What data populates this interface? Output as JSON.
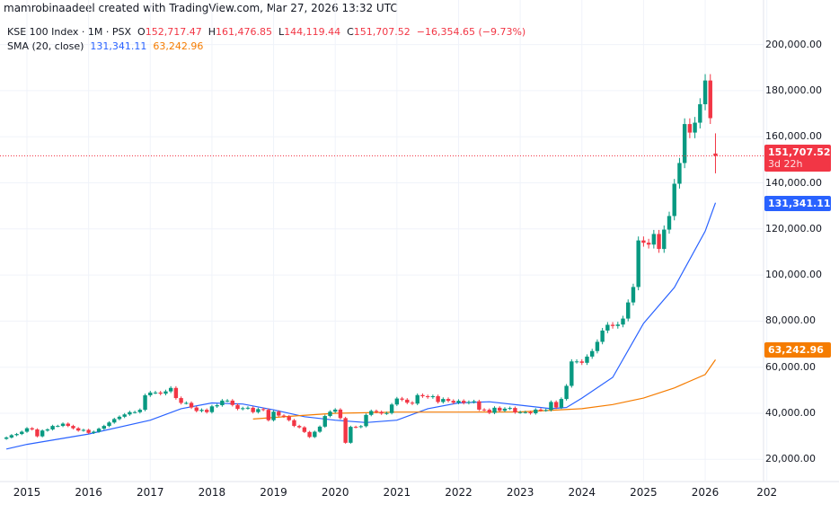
{
  "credit": "mamrobinaadeel created with TradingView.com, Mar 27, 2026 13:32 UTC",
  "legend": {
    "symbol": "KSE 100 Index · 1M · PSX",
    "o_label": "O",
    "o": "152,717.47",
    "h_label": "H",
    "h": "161,476.85",
    "l_label": "L",
    "l": "144,119.44",
    "c_label": "C",
    "c": "151,707.52",
    "change": "−16,354.65 (−9.73%)",
    "sma_label": "SMA (20, close)",
    "sma1": "131,341.11",
    "sma2": "63,242.96"
  },
  "tags": {
    "price": "151,707.52",
    "countdown": "3d 22h",
    "sma1": "131,341.11",
    "sma2": "63,242.96"
  },
  "colors": {
    "up": "#089981",
    "down": "#f23645",
    "sma1": "#2962ff",
    "sma2": "#f57c00",
    "grid": "#f0f3fa",
    "last_price_line": "#f23645"
  },
  "chart_data": {
    "type": "candlestick",
    "interval": "1M",
    "start": "2014-09",
    "closes": [
      29500,
      30500,
      31000,
      32000,
      33500,
      33000,
      30000,
      32500,
      33000,
      34500,
      34500,
      35500,
      34500,
      33500,
      32500,
      32800,
      31500,
      32000,
      33300,
      34500,
      36000,
      37500,
      38500,
      39500,
      40500,
      40500,
      41500,
      47800,
      49000,
      49000,
      48500,
      49500,
      51000,
      46600,
      44500,
      44500,
      42500,
      41000,
      41500,
      40500,
      43000,
      43500,
      45500,
      45500,
      43600,
      41900,
      42200,
      42400,
      40500,
      41800,
      41500,
      37000,
      40700,
      39000,
      38600,
      37000,
      34500,
      33900,
      31900,
      29700,
      32000,
      34200,
      38800,
      40700,
      41600,
      37900,
      27200,
      34100,
      34000,
      34400,
      39300,
      41000,
      40600,
      39900,
      40100,
      43800,
      46400,
      45900,
      44600,
      44200,
      47900,
      47400,
      47000,
      47400,
      44900,
      46200,
      45400,
      44600,
      45400,
      44500,
      44900,
      45200,
      41600,
      41500,
      40200,
      42400,
      41100,
      42000,
      42300,
      40400,
      40500,
      40500,
      40000,
      41600,
      41300,
      41400,
      44900,
      42500,
      46200,
      51900,
      62500,
      62500,
      61900,
      64600,
      67000,
      71000,
      75900,
      78400,
      77900,
      78500,
      81100,
      88100,
      94800,
      115000,
      114000,
      113200,
      117800,
      111300,
      119700,
      125600,
      139600,
      148600,
      165500,
      161800,
      166100,
      174100,
      184400,
      168062.17,
      151707.52
    ],
    "last_candle": {
      "open": 152717.47,
      "high": 161476.85,
      "low": 144119.44,
      "close": 151707.52
    },
    "series": [
      {
        "name": "SMA (20, close)",
        "points": [
          [
            "2014-09",
            24500
          ],
          [
            "2015-01",
            26500
          ],
          [
            "2016-01",
            31000
          ],
          [
            "2017-01",
            37000
          ],
          [
            "2017-07",
            42000
          ],
          [
            "2018-01",
            44500
          ],
          [
            "2018-07",
            44000
          ],
          [
            "2019-01",
            41500
          ],
          [
            "2019-07",
            38500
          ],
          [
            "2020-01",
            37000
          ],
          [
            "2020-07",
            36000
          ],
          [
            "2021-01",
            37000
          ],
          [
            "2021-07",
            42000
          ],
          [
            "2022-01",
            44500
          ],
          [
            "2022-07",
            45000
          ],
          [
            "2023-01",
            43500
          ],
          [
            "2023-07",
            42000
          ],
          [
            "2023-10",
            42500
          ],
          [
            "2024-01",
            46600
          ],
          [
            "2024-07",
            55600
          ],
          [
            "2025-01",
            79000
          ],
          [
            "2025-07",
            94600
          ],
          [
            "2026-01",
            119000
          ],
          [
            "2026-03",
            131341.11
          ]
        ]
      },
      {
        "name": "SMA (20, close)",
        "points": [
          [
            "2018-09",
            37500
          ],
          [
            "2019-06",
            39000
          ],
          [
            "2020-01",
            40000
          ],
          [
            "2021-01",
            40500
          ],
          [
            "2022-01",
            40500
          ],
          [
            "2023-01",
            40600
          ],
          [
            "2024-01",
            42000
          ],
          [
            "2024-07",
            43800
          ],
          [
            "2025-01",
            46600
          ],
          [
            "2025-07",
            51000
          ],
          [
            "2026-01",
            56800
          ],
          [
            "2026-03",
            63242.96
          ]
        ]
      }
    ],
    "x_ticks": [
      "2015",
      "2016",
      "2017",
      "2018",
      "2019",
      "2020",
      "2021",
      "2022",
      "2023",
      "2024",
      "2025",
      "2026",
      "202"
    ],
    "y_ticks": [
      "200,000.00",
      "180,000.00",
      "160,000.00",
      "140,000.00",
      "120,000.00",
      "100,000.00",
      "80,000.00",
      "60,000.00",
      "40,000.00",
      "20,000.00"
    ],
    "ylim": [
      10000,
      205000
    ],
    "grid": true
  }
}
